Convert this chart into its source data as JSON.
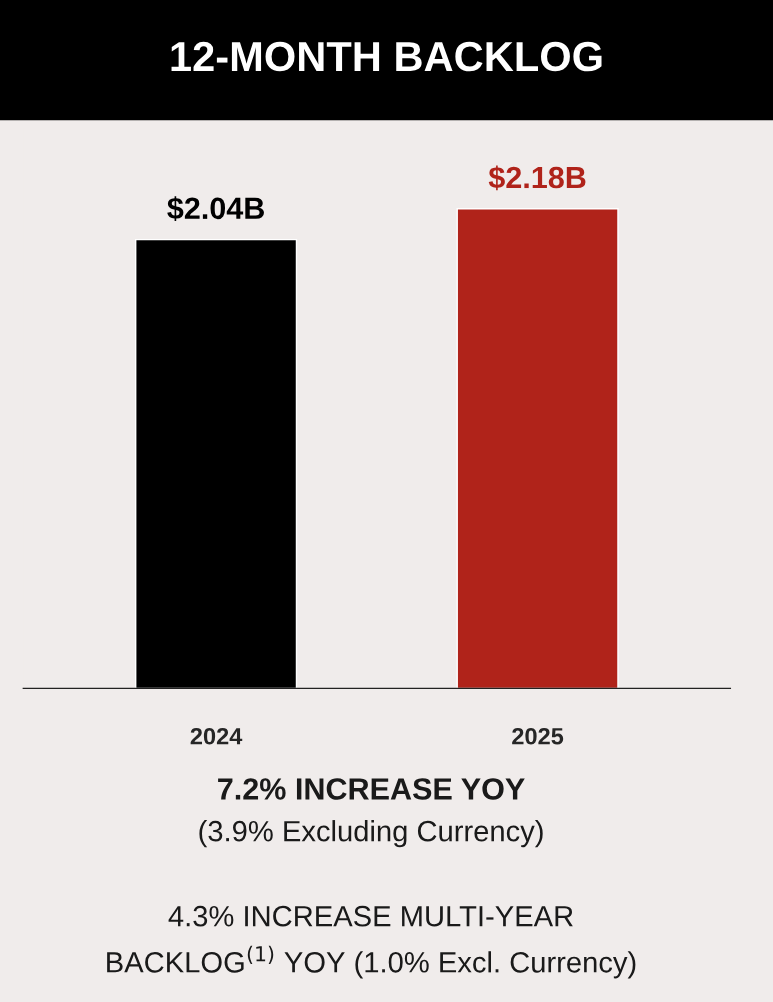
{
  "chart_data": {
    "type": "bar",
    "title": "12-MONTH BACKLOG",
    "categories": [
      "2024",
      "2025"
    ],
    "values": [
      2.04,
      2.18
    ],
    "colors": [
      "#000000",
      "#b0231a"
    ],
    "value_labels": [
      "$2.04B",
      "$2.18B"
    ],
    "grid": false,
    "legend": false,
    "tick_labels": "x",
    "annotations": [
      "7.2% INCREASE YOY",
      "(3.9% Excluding Currency)",
      "4.3% INCREASE MULTI-YEAR\nBACKLOG$^{(1)}$ YOY (1.0% Excl. Currency)"
    ]
  }
}
